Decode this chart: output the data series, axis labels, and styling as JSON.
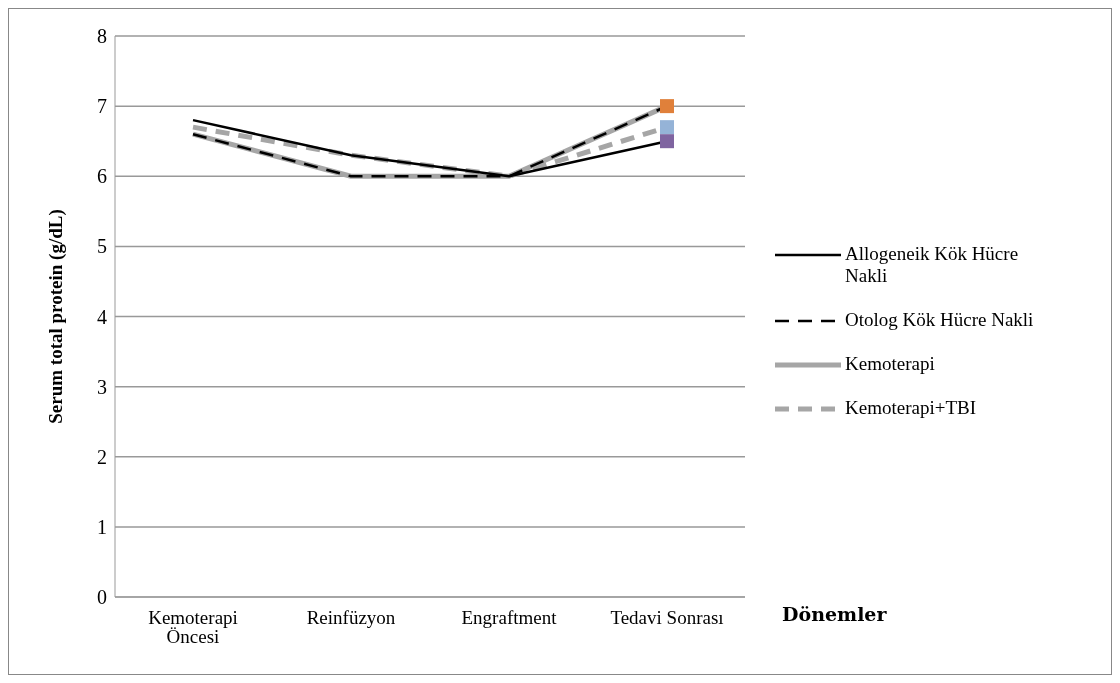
{
  "chart_data": {
    "type": "line",
    "ylabel": "Serum total protein (g/dL)",
    "xlabel": "Dönemler",
    "categories": [
      "Kemoterapi Öncesi",
      "Reinfüzyon",
      "Engraftment",
      "Tedavi Sonrası"
    ],
    "ylim": [
      0,
      8
    ],
    "yticks": [
      0,
      1,
      2,
      3,
      4,
      5,
      6,
      7,
      8
    ],
    "grid": "y",
    "legend": "right",
    "marker": "none",
    "series": [
      {
        "name": "Allogeneik Kök Hücre Nakli",
        "color": "#000000",
        "line_style": "solid",
        "values": [
          6.8,
          6.3,
          6.0,
          6.5
        ]
      },
      {
        "name": "Otolog Kök Hücre Nakli",
        "color": "#000000",
        "line_style": "dashed",
        "values": [
          6.6,
          6.0,
          6.0,
          7.0
        ]
      },
      {
        "name": "Kemoterapi",
        "color": "#a6a6a6",
        "line_style": "solid",
        "values": [
          6.6,
          6.0,
          6.0,
          7.0
        ]
      },
      {
        "name": "Kemoterapi+TBI",
        "color": "#a6a6a6",
        "line_style": "dashed",
        "values": [
          6.7,
          6.3,
          6.0,
          6.7
        ]
      },
      {
        "type": "scatter",
        "marker": "square",
        "color": "#7f64a0",
        "x": [
          "Tedavi Sonrası"
        ],
        "values": [
          6.5
        ]
      },
      {
        "type": "scatter",
        "marker": "square",
        "color": "#e0803a",
        "x": [
          "Tedavi Sonrası"
        ],
        "values": [
          7.0
        ]
      },
      {
        "type": "scatter",
        "marker": "square",
        "color": "#95b3d7",
        "x": [
          "Tedavi Sonrası"
        ],
        "values": [
          6.7
        ]
      }
    ]
  }
}
